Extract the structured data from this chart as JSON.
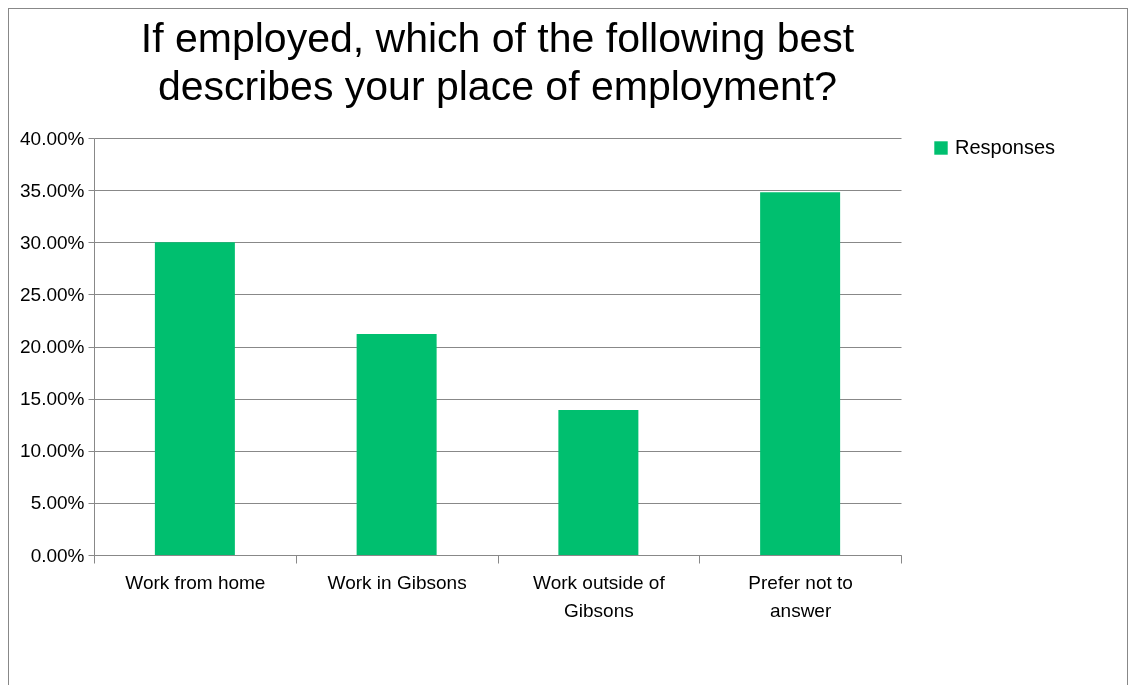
{
  "chart_data": {
    "type": "bar",
    "title": "If employed, which of the following best describes your place of employment?",
    "categories": [
      "Work from home",
      "Work in Gibsons",
      "Work outside of Gibsons",
      "Prefer not to answer"
    ],
    "series": [
      {
        "name": "Responses",
        "color": "#00bf6f",
        "values": [
          30.0,
          21.2,
          13.9,
          34.8
        ]
      }
    ],
    "ylim": [
      0,
      40
    ],
    "yticks": [
      {
        "value": 0,
        "label": "0.00%"
      },
      {
        "value": 5,
        "label": "5.00%"
      },
      {
        "value": 10,
        "label": "10.00%"
      },
      {
        "value": 15,
        "label": "15.00%"
      },
      {
        "value": 20,
        "label": "20.00%"
      },
      {
        "value": 25,
        "label": "25.00%"
      },
      {
        "value": 30,
        "label": "30.00%"
      },
      {
        "value": 35,
        "label": "35.00%"
      },
      {
        "value": 40,
        "label": "40.00%"
      }
    ],
    "grid": "y",
    "legend": "right"
  }
}
